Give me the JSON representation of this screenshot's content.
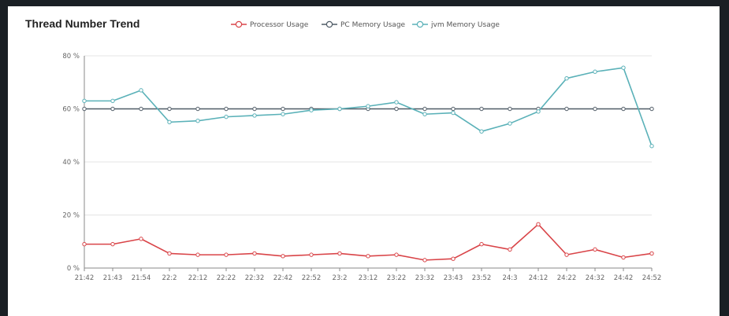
{
  "panel": {
    "title": "Thread Number Trend"
  },
  "chart_data": {
    "type": "line",
    "title": "Thread Number Trend",
    "xlabel": "",
    "ylabel": "",
    "categories": [
      "21:42",
      "21:43",
      "21:54",
      "22:2",
      "22:12",
      "22:22",
      "22:32",
      "22:42",
      "22:52",
      "23:2",
      "23:12",
      "23:22",
      "23:32",
      "23:43",
      "23:52",
      "24:3",
      "24:12",
      "24:22",
      "24:32",
      "24:42",
      "24:52"
    ],
    "y_ticks": [
      "0 %",
      "20 %",
      "40 %",
      "60 %",
      "80 %"
    ],
    "ylim": [
      0,
      80
    ],
    "grid": true,
    "legend_position": "top-center",
    "series": [
      {
        "name": "Processor Usage",
        "color": "#d94448",
        "values": [
          9,
          9,
          11,
          5.5,
          5,
          5,
          5.5,
          4.5,
          5,
          5.5,
          4.5,
          5,
          3,
          3.5,
          9,
          7,
          16.5,
          5,
          7,
          4,
          5.5
        ]
      },
      {
        "name": "PC Memory Usage",
        "color": "#4f5b66",
        "values": [
          60,
          60,
          60,
          60,
          60,
          60,
          60,
          60,
          60,
          60,
          60,
          60,
          60,
          60,
          60,
          60,
          60,
          60,
          60,
          60,
          60
        ]
      },
      {
        "name": "jvm Memory Usage",
        "color": "#5ab1b8",
        "values": [
          63,
          63,
          67,
          55,
          55.5,
          57,
          57.5,
          58,
          59.5,
          60,
          61,
          62.5,
          58,
          58.5,
          51.5,
          54.5,
          59,
          71.5,
          74,
          75.5,
          46
        ]
      }
    ]
  }
}
